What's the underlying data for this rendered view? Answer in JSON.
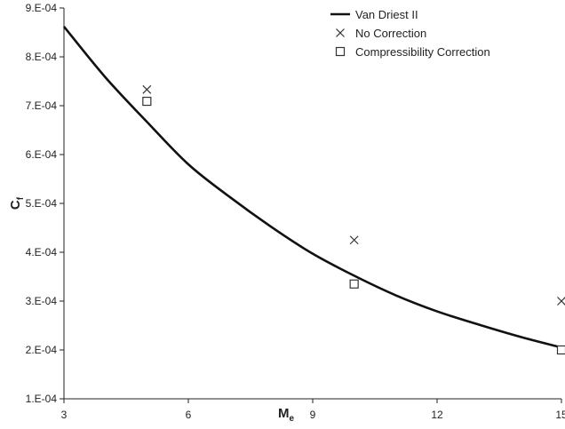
{
  "chart_data": {
    "type": "line",
    "xlabel": "M",
    "xlabel_sub": "e",
    "ylabel": "C",
    "ylabel_sub": "f",
    "xlim": [
      3,
      15
    ],
    "ylim": [
      0.0001,
      0.0009
    ],
    "x_ticks": [
      3,
      6,
      9,
      12,
      15
    ],
    "x_tick_labels": [
      "3",
      "6",
      "9",
      "12",
      "15"
    ],
    "y_ticks": [
      0.0001,
      0.0002,
      0.0003,
      0.0004,
      0.0005,
      0.0006,
      0.0007,
      0.0008,
      0.0009
    ],
    "y_tick_labels": [
      "1.E-04",
      "2.E-04",
      "3.E-04",
      "4.E-04",
      "5.E-04",
      "6.E-04",
      "7.E-04",
      "8.E-04",
      "9.E-04"
    ],
    "grid": false,
    "legend_position": "top-right",
    "series": [
      {
        "name": "Van Driest II",
        "style": "line",
        "color": "#111111",
        "x": [
          3,
          4,
          5,
          6,
          7,
          8,
          9,
          10,
          11,
          12,
          13,
          14,
          15
        ],
        "y": [
          0.000862,
          0.000758,
          0.000667,
          0.00058,
          0.000513,
          0.000452,
          0.000397,
          0.000352,
          0.000312,
          0.000279,
          0.000252,
          0.000227,
          0.000205
        ]
      },
      {
        "name": "No Correction",
        "style": "marker-x",
        "color": "#333333",
        "x": [
          5,
          10,
          15
        ],
        "y": [
          0.000733,
          0.000425,
          0.0003
        ]
      },
      {
        "name": "Compressibility Correction",
        "style": "marker-square",
        "color": "#333333",
        "x": [
          5,
          10,
          15
        ],
        "y": [
          0.000709,
          0.000335,
          0.0002
        ]
      }
    ]
  }
}
